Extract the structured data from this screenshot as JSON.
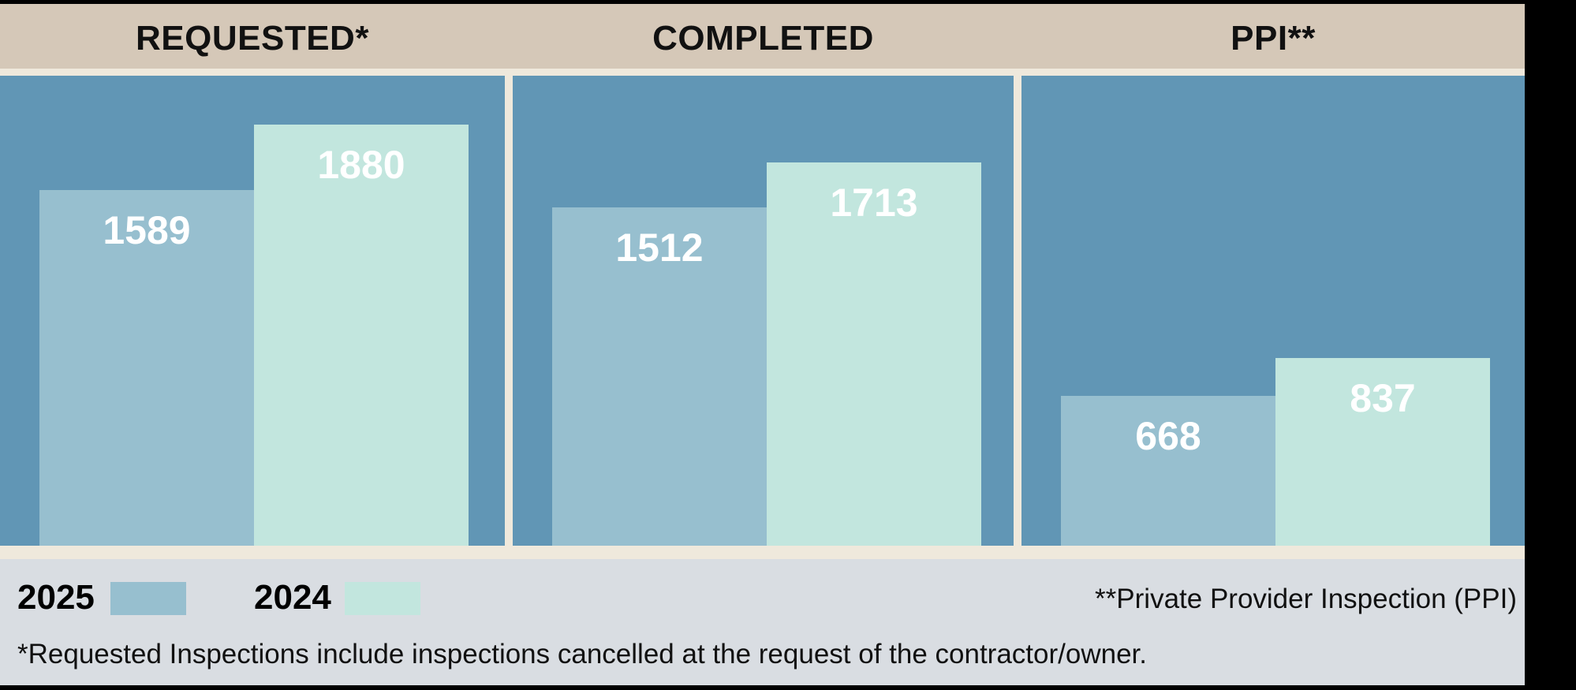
{
  "chart_data": {
    "type": "bar",
    "categories": [
      "REQUESTED*",
      "COMPLETED",
      "PPI**"
    ],
    "series": [
      {
        "name": "2025",
        "values": [
          1589,
          1512,
          668
        ],
        "color": "#97bfcf"
      },
      {
        "name": "2024",
        "values": [
          1880,
          1713,
          837
        ],
        "color": "#c2e6de"
      }
    ],
    "ylim": [
      0,
      2100
    ],
    "grid": false,
    "legend_position": "bottom-left"
  },
  "colors": {
    "panel": "#6196b5",
    "header": "#d5c8b8",
    "footer": "#d9dde2",
    "separator": "#efe9dc"
  },
  "legend": [
    {
      "label": "2025",
      "color": "#97bfcf"
    },
    {
      "label": "2024",
      "color": "#c2e6de"
    }
  ],
  "notes": {
    "ppi": "**Private Provider Inspection (PPI)",
    "requested": "*Requested Inspections include inspections cancelled at the request of the contractor/owner."
  }
}
